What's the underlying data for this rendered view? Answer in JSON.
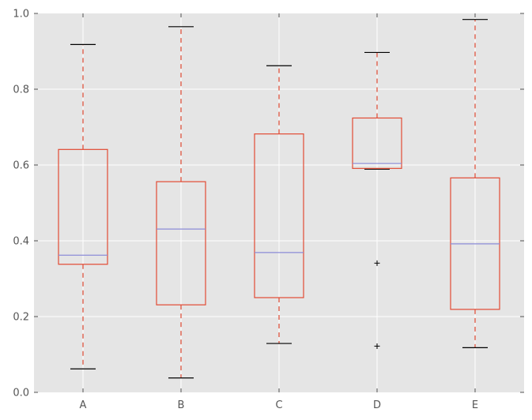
{
  "chart_data": {
    "type": "box",
    "title": "",
    "xlabel": "",
    "ylabel": "",
    "ylim": [
      0.0,
      1.0
    ],
    "yticks": [
      "0.0",
      "0.2",
      "0.4",
      "0.6",
      "0.8",
      "1.0"
    ],
    "grid": true,
    "categories": [
      "A",
      "B",
      "C",
      "D",
      "E"
    ],
    "boxes": [
      {
        "label": "A",
        "whisker_low": 0.062,
        "q1": 0.338,
        "median": 0.362,
        "q3": 0.641,
        "whisker_high": 0.918,
        "outliers": []
      },
      {
        "label": "B",
        "whisker_low": 0.038,
        "q1": 0.231,
        "median": 0.431,
        "q3": 0.556,
        "whisker_high": 0.965,
        "outliers": []
      },
      {
        "label": "C",
        "whisker_low": 0.129,
        "q1": 0.25,
        "median": 0.369,
        "q3": 0.682,
        "whisker_high": 0.862,
        "outliers": []
      },
      {
        "label": "D",
        "whisker_low": 0.589,
        "q1": 0.591,
        "median": 0.604,
        "q3": 0.724,
        "whisker_high": 0.897,
        "outliers": [
          0.341,
          0.122
        ]
      },
      {
        "label": "E",
        "whisker_low": 0.118,
        "q1": 0.219,
        "median": 0.392,
        "q3": 0.566,
        "whisker_high": 0.984,
        "outliers": []
      }
    ],
    "colors": {
      "plot_background": "#e5e5e5",
      "grid": "#ffffff",
      "box": "#e24a33",
      "whisker": "#e24a33",
      "median": "#8c8cd8",
      "cap": "#000000",
      "flier": "#000000",
      "tick_text": "#555555"
    }
  }
}
